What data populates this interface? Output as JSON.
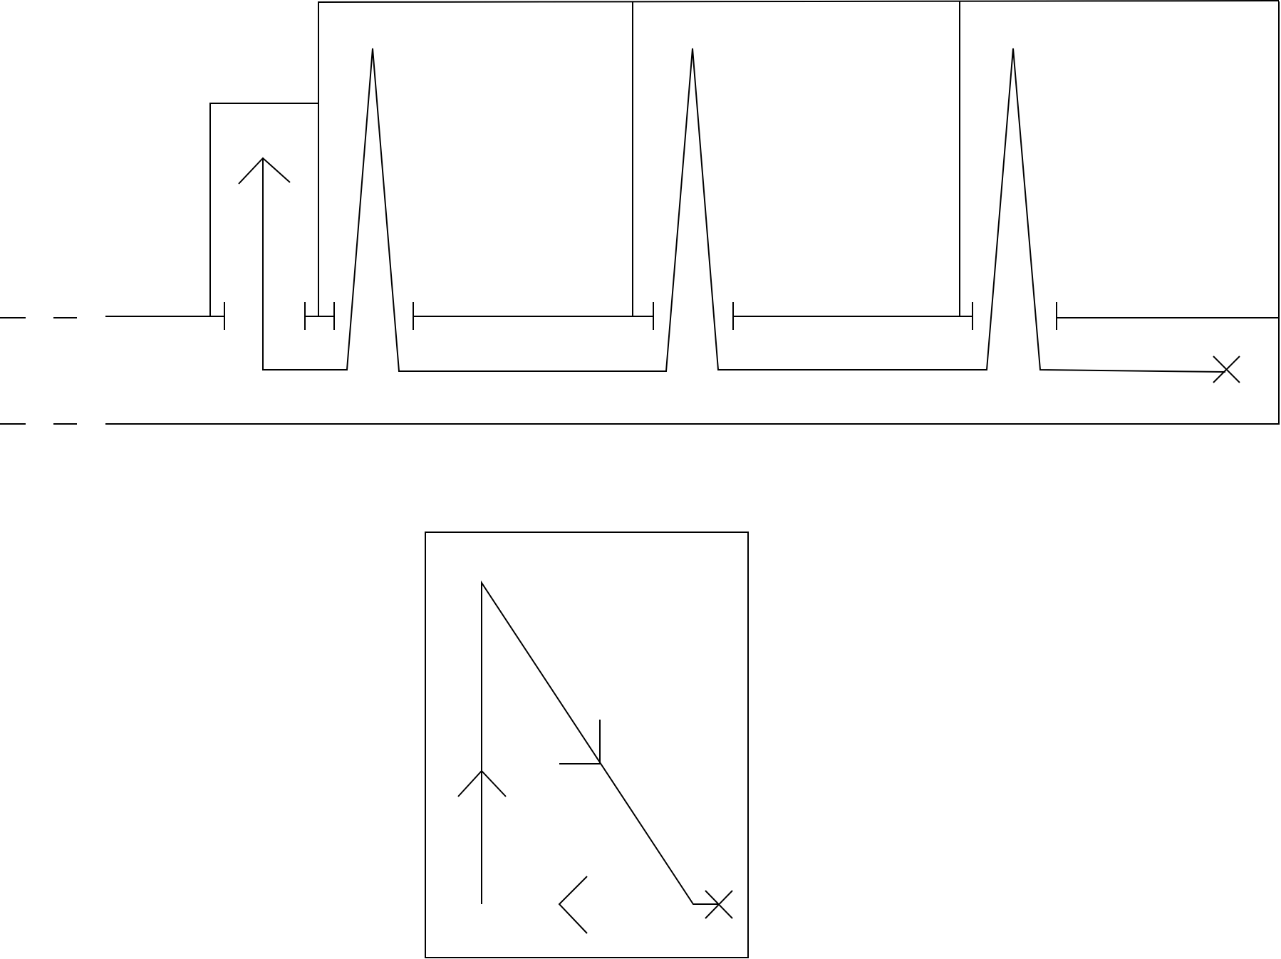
{
  "diagram": {
    "type": "line-drawing",
    "text_labels": [],
    "colors": {
      "stroke": "#000000",
      "background": "#ffffff"
    },
    "top_figure": {
      "description_items": [
        "dashed-left-extension",
        "stepped-bracket-outline",
        "three-spike-peaks",
        "five-t-bar-end-caps",
        "upward-arrow",
        "cross-end-marker"
      ]
    },
    "bottom_figure": {
      "description_items": [
        "rectangular-frame",
        "right-triangle-path",
        "upward-arrow",
        "leftward-arrow",
        "t-junction-mark",
        "cross-end-marker"
      ]
    }
  }
}
